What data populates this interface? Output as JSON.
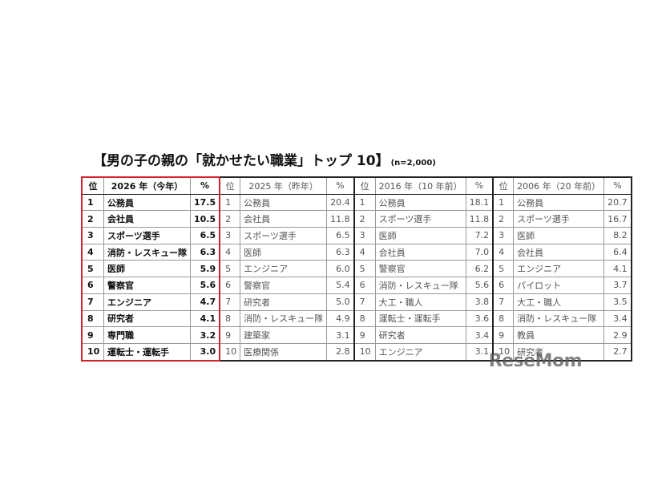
{
  "title": "【男の子の親の「就かせたい職業」トップ 10】",
  "sample_size": "(n=2,000)",
  "watermark": "ReseMom",
  "rank_header": "位",
  "pct_header": "%",
  "groups": [
    {
      "header": "2026 年（今年）",
      "current": true,
      "rows": [
        [
          "1",
          "公務員",
          "17.5"
        ],
        [
          "2",
          "会社員",
          "10.5"
        ],
        [
          "3",
          "スポーツ選手",
          "6.5"
        ],
        [
          "4",
          "消防・レスキュー隊",
          "6.3"
        ],
        [
          "5",
          "医師",
          "5.9"
        ],
        [
          "6",
          "警察官",
          "5.6"
        ],
        [
          "7",
          "エンジニア",
          "4.7"
        ],
        [
          "8",
          "研究者",
          "4.1"
        ],
        [
          "9",
          "専門職",
          "3.2"
        ],
        [
          "10",
          "運転士・運転手",
          "3.0"
        ]
      ]
    },
    {
      "header": "2025 年（昨年）",
      "current": false,
      "rows": [
        [
          "1",
          "公務員",
          "20.4"
        ],
        [
          "2",
          "会社員",
          "11.8"
        ],
        [
          "3",
          "スポーツ選手",
          "6.5"
        ],
        [
          "4",
          "医師",
          "6.3"
        ],
        [
          "5",
          "エンジニア",
          "6.0"
        ],
        [
          "6",
          "警察官",
          "5.4"
        ],
        [
          "7",
          "研究者",
          "5.0"
        ],
        [
          "8",
          "消防・レスキュー隊",
          "4.9"
        ],
        [
          "9",
          "建築家",
          "3.1"
        ],
        [
          "10",
          "医療関係",
          "2.8"
        ]
      ]
    },
    {
      "header": "2016 年（10 年前）",
      "current": false,
      "rows": [
        [
          "1",
          "公務員",
          "18.1"
        ],
        [
          "2",
          "スポーツ選手",
          "11.8"
        ],
        [
          "3",
          "医師",
          "7.2"
        ],
        [
          "4",
          "会社員",
          "7.0"
        ],
        [
          "5",
          "警察官",
          "6.2"
        ],
        [
          "6",
          "消防・レスキュー隊",
          "5.6"
        ],
        [
          "7",
          "大工・職人",
          "3.8"
        ],
        [
          "8",
          "運転士・運転手",
          "3.6"
        ],
        [
          "9",
          "研究者",
          "3.4"
        ],
        [
          "10",
          "エンジニア",
          "3.1"
        ]
      ]
    },
    {
      "header": "2006 年（20 年前）",
      "current": false,
      "rows": [
        [
          "1",
          "公務員",
          "20.7"
        ],
        [
          "2",
          "スポーツ選手",
          "16.7"
        ],
        [
          "3",
          "医師",
          "8.2"
        ],
        [
          "4",
          "会社員",
          "6.4"
        ],
        [
          "5",
          "エンジニア",
          "4.1"
        ],
        [
          "6",
          "パイロット",
          "3.7"
        ],
        [
          "7",
          "大工・職人",
          "3.5"
        ],
        [
          "8",
          "消防・レスキュー隊",
          "3.4"
        ],
        [
          "9",
          "教員",
          "2.9"
        ],
        [
          "10",
          "研究者",
          "2.7"
        ]
      ]
    }
  ]
}
